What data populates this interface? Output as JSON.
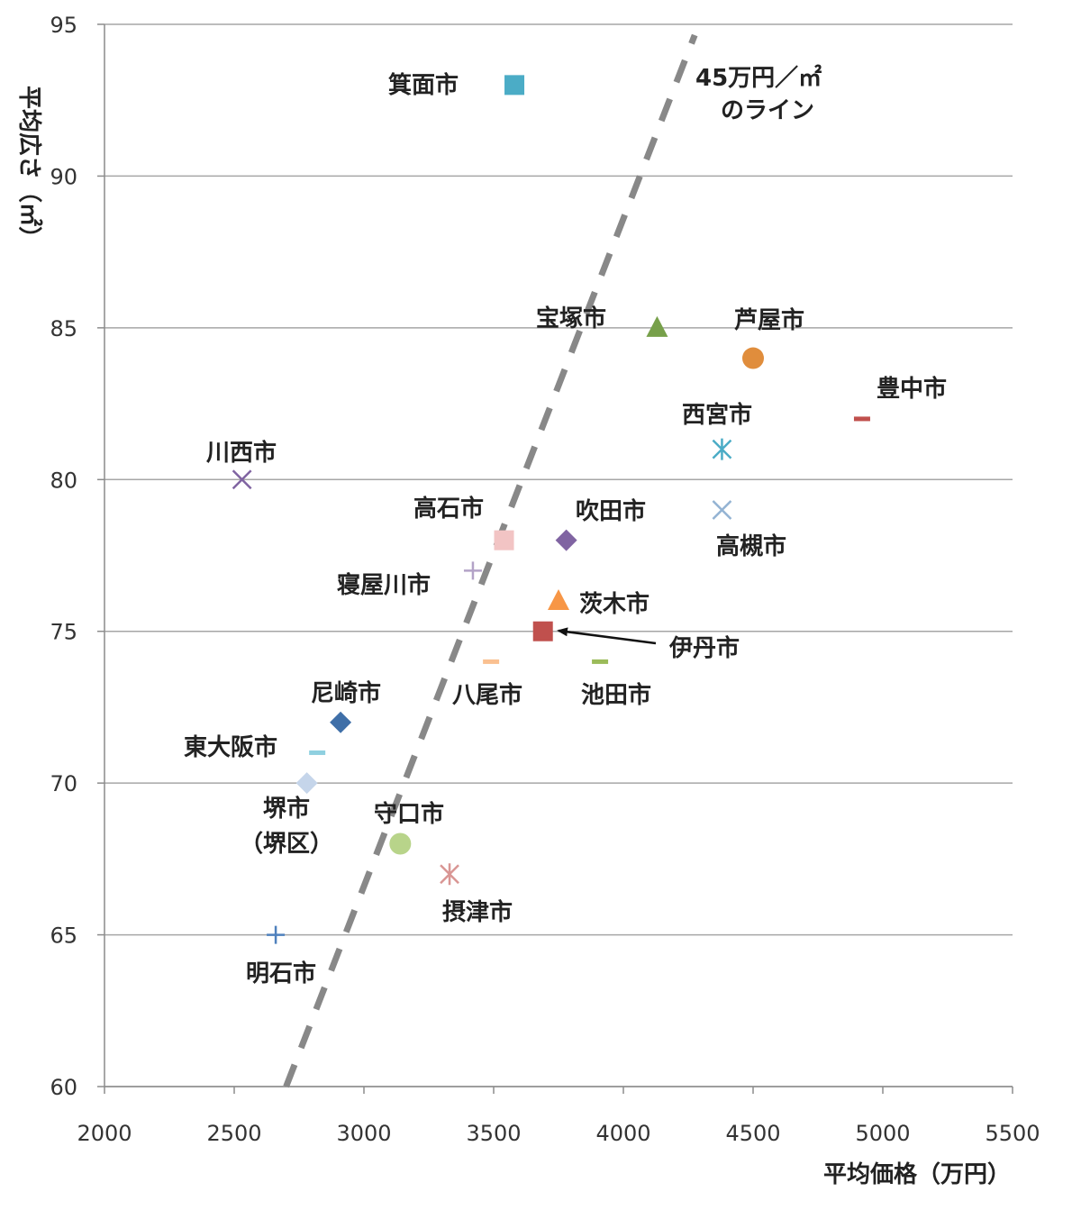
{
  "chart_data": {
    "type": "scatter",
    "xlabel": "平均価格（万円）",
    "ylabel": "平均広さ（㎡）",
    "xlim": [
      2000,
      5500
    ],
    "ylim": [
      60,
      95
    ],
    "xticks": [
      2000,
      2500,
      3000,
      3500,
      4000,
      4500,
      5000,
      5500
    ],
    "yticks": [
      60,
      65,
      70,
      75,
      80,
      85,
      90,
      95
    ],
    "grid": "horizontal",
    "reference_line": {
      "label": [
        "45万円／㎡",
        "のライン"
      ],
      "price_per_sqm": 45,
      "style": "dashed",
      "color": "#888888"
    },
    "points": [
      {
        "name": "箕面市",
        "x": 3580,
        "y": 93,
        "marker": "square",
        "color": "#4bacc6"
      },
      {
        "name": "宝塚市",
        "x": 4130,
        "y": 85,
        "marker": "triangle",
        "color": "#77a04a"
      },
      {
        "name": "芦屋市",
        "x": 4500,
        "y": 84,
        "marker": "circle",
        "color": "#e08d3c"
      },
      {
        "name": "豊中市",
        "x": 4920,
        "y": 82,
        "marker": "dash",
        "color": "#c0504d"
      },
      {
        "name": "西宮市",
        "x": 4380,
        "y": 81,
        "marker": "asterisk",
        "color": "#4bacc6"
      },
      {
        "name": "川西市",
        "x": 2530,
        "y": 80,
        "marker": "x",
        "color": "#8064a2"
      },
      {
        "name": "高槻市",
        "x": 4380,
        "y": 79,
        "marker": "x",
        "color": "#93b3d3"
      },
      {
        "name": "高石市",
        "x": 3540,
        "y": 78,
        "marker": "square",
        "color": "#f2c4c4"
      },
      {
        "name": "吹田市",
        "x": 3780,
        "y": 78,
        "marker": "diamond",
        "color": "#8064a2"
      },
      {
        "name": "寝屋川市",
        "x": 3420,
        "y": 77,
        "marker": "plus",
        "color": "#b3a2c7"
      },
      {
        "name": "茨木市",
        "x": 3750,
        "y": 76,
        "marker": "triangle",
        "color": "#f79646"
      },
      {
        "name": "伊丹市",
        "x": 3690,
        "y": 75,
        "marker": "square",
        "color": "#c0504d"
      },
      {
        "name": "八尾市",
        "x": 3490,
        "y": 74,
        "marker": "dash",
        "color": "#fac090"
      },
      {
        "name": "池田市",
        "x": 3910,
        "y": 74,
        "marker": "dash",
        "color": "#9bbb59"
      },
      {
        "name": "尼崎市",
        "x": 2910,
        "y": 72,
        "marker": "diamond",
        "color": "#3f6fa8"
      },
      {
        "name": "東大阪市",
        "x": 2820,
        "y": 71,
        "marker": "dash",
        "color": "#8fd0e0"
      },
      {
        "name": "堺市（堺区）",
        "x": 2780,
        "y": 70,
        "marker": "diamond",
        "color": "#c5d5ea"
      },
      {
        "name": "守口市",
        "x": 3140,
        "y": 68,
        "marker": "circle",
        "color": "#b8d48a"
      },
      {
        "name": "摂津市",
        "x": 3330,
        "y": 67,
        "marker": "asterisk",
        "color": "#d99694"
      },
      {
        "name": "明石市",
        "x": 2660,
        "y": 65,
        "marker": "plus",
        "color": "#4f81bd"
      }
    ]
  },
  "labels": {
    "箕面市": "箕面市",
    "宝塚市": "宝塚市",
    "芦屋市": "芦屋市",
    "豊中市": "豊中市",
    "西宮市": "西宮市",
    "川西市": "川西市",
    "高槻市": "高槻市",
    "高石市": "高石市",
    "吹田市": "吹田市",
    "寝屋川市": "寝屋川市",
    "茨木市": "茨木市",
    "伊丹市": "伊丹市",
    "八尾市": "八尾市",
    "池田市": "池田市",
    "尼崎市": "尼崎市",
    "東大阪市": "東大阪市",
    "堺市1": "堺市",
    "堺市2": "（堺区）",
    "守口市": "守口市",
    "摂津市": "摂津市",
    "明石市": "明石市"
  }
}
